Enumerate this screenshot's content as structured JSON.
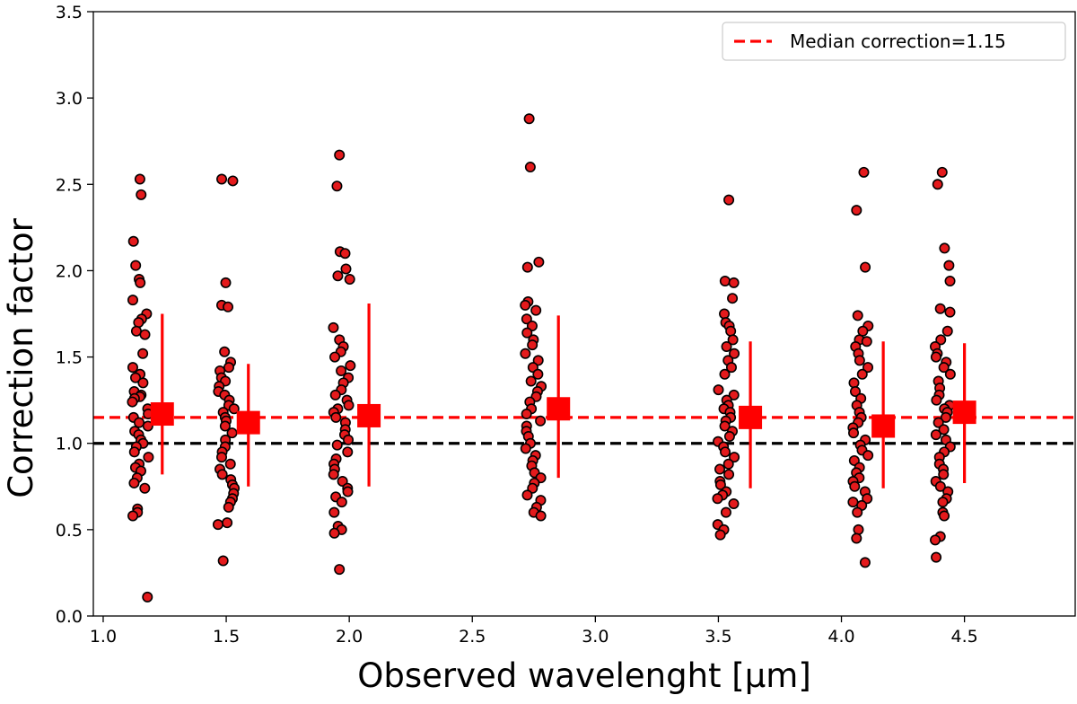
{
  "chart_data": {
    "type": "scatter",
    "xlabel": "Observed wavelenght [μm]",
    "ylabel": "Correction factor",
    "xlim": [
      0.96,
      4.95
    ],
    "ylim": [
      0.0,
      3.5
    ],
    "xticks": [
      "1.0",
      "1.5",
      "2.0",
      "2.5",
      "3.0",
      "3.5",
      "4.0",
      "4.5"
    ],
    "yticks": [
      "0.0",
      "0.5",
      "1.0",
      "1.5",
      "2.0",
      "2.5",
      "3.0",
      "3.5"
    ],
    "grid": false,
    "legend": {
      "placement": "top-right",
      "entries": [
        "Median correction=1.15"
      ]
    },
    "reference_lines": [
      {
        "y": 1.15,
        "style": "dashed",
        "color": "#ff0000",
        "label": "Median correction=1.15"
      },
      {
        "y": 1.0,
        "style": "dashed",
        "color": "#000000"
      }
    ],
    "series": [
      {
        "kind": "points",
        "color": "#e41a1c",
        "edge_color": "#000000",
        "groups": [
          {
            "x_center": 1.15,
            "y": [
              2.53,
              2.44,
              2.17,
              2.03,
              1.95,
              1.93,
              1.83,
              1.75,
              1.72,
              1.7,
              1.65,
              1.63,
              1.52,
              1.44,
              1.4,
              1.38,
              1.35,
              1.3,
              1.28,
              1.27,
              1.26,
              1.24,
              1.2,
              1.17,
              1.15,
              1.12,
              1.1,
              1.07,
              1.05,
              1.02,
              1.0,
              0.98,
              0.95,
              0.92,
              0.88,
              0.86,
              0.84,
              0.8,
              0.77,
              0.74,
              0.62,
              0.6,
              0.58,
              0.11
            ]
          },
          {
            "x_center": 1.5,
            "y": [
              2.53,
              2.52,
              1.93,
              1.8,
              1.79,
              1.53,
              1.47,
              1.44,
              1.42,
              1.38,
              1.36,
              1.33,
              1.3,
              1.28,
              1.25,
              1.22,
              1.2,
              1.18,
              1.15,
              1.13,
              1.1,
              1.06,
              1.02,
              0.98,
              0.95,
              0.92,
              0.88,
              0.85,
              0.82,
              0.79,
              0.76,
              0.74,
              0.71,
              0.68,
              0.66,
              0.63,
              0.54,
              0.53,
              0.32
            ]
          },
          {
            "x_center": 1.97,
            "y": [
              2.67,
              2.49,
              2.11,
              2.1,
              2.01,
              1.97,
              1.95,
              1.67,
              1.6,
              1.56,
              1.53,
              1.5,
              1.45,
              1.42,
              1.38,
              1.35,
              1.31,
              1.28,
              1.25,
              1.22,
              1.2,
              1.18,
              1.15,
              1.12,
              1.08,
              1.05,
              1.02,
              0.99,
              0.95,
              0.91,
              0.88,
              0.85,
              0.82,
              0.78,
              0.74,
              0.72,
              0.69,
              0.66,
              0.6,
              0.52,
              0.5,
              0.48,
              0.27
            ]
          },
          {
            "x_center": 2.75,
            "y": [
              2.88,
              2.6,
              2.05,
              2.02,
              1.82,
              1.8,
              1.77,
              1.72,
              1.68,
              1.64,
              1.6,
              1.57,
              1.52,
              1.48,
              1.44,
              1.4,
              1.36,
              1.33,
              1.3,
              1.27,
              1.24,
              1.2,
              1.17,
              1.13,
              1.1,
              1.07,
              1.04,
              1.0,
              0.97,
              0.93,
              0.9,
              0.87,
              0.83,
              0.8,
              0.77,
              0.74,
              0.7,
              0.67,
              0.63,
              0.6,
              0.58
            ]
          },
          {
            "x_center": 3.53,
            "y": [
              2.41,
              1.94,
              1.93,
              1.84,
              1.75,
              1.7,
              1.68,
              1.65,
              1.6,
              1.56,
              1.52,
              1.48,
              1.44,
              1.4,
              1.31,
              1.28,
              1.25,
              1.22,
              1.2,
              1.18,
              1.15,
              1.13,
              1.1,
              1.07,
              1.04,
              1.01,
              0.98,
              0.95,
              0.92,
              0.88,
              0.85,
              0.82,
              0.78,
              0.76,
              0.72,
              0.7,
              0.68,
              0.65,
              0.6,
              0.53,
              0.5,
              0.47
            ]
          },
          {
            "x_center": 4.08,
            "y": [
              2.57,
              2.35,
              2.02,
              1.74,
              1.68,
              1.65,
              1.6,
              1.59,
              1.56,
              1.52,
              1.48,
              1.44,
              1.4,
              1.35,
              1.3,
              1.26,
              1.22,
              1.18,
              1.15,
              1.12,
              1.09,
              1.06,
              1.02,
              0.99,
              0.96,
              0.93,
              0.9,
              0.86,
              0.83,
              0.8,
              0.78,
              0.75,
              0.72,
              0.68,
              0.66,
              0.64,
              0.6,
              0.5,
              0.45,
              0.31
            ]
          },
          {
            "x_center": 4.41,
            "y": [
              2.57,
              2.5,
              2.13,
              2.03,
              1.94,
              1.78,
              1.76,
              1.65,
              1.6,
              1.56,
              1.52,
              1.5,
              1.47,
              1.44,
              1.4,
              1.36,
              1.32,
              1.28,
              1.25,
              1.22,
              1.2,
              1.18,
              1.15,
              1.12,
              1.08,
              1.05,
              1.02,
              0.98,
              0.95,
              0.92,
              0.88,
              0.85,
              0.82,
              0.78,
              0.75,
              0.72,
              0.68,
              0.66,
              0.6,
              0.58,
              0.46,
              0.44,
              0.34
            ]
          }
        ]
      },
      {
        "kind": "medians",
        "color": "#ff0000",
        "points": [
          {
            "x": 1.24,
            "y": 1.17,
            "low": 0.82,
            "high": 1.75
          },
          {
            "x": 1.59,
            "y": 1.12,
            "low": 0.75,
            "high": 1.46
          },
          {
            "x": 2.08,
            "y": 1.16,
            "low": 0.75,
            "high": 1.81
          },
          {
            "x": 2.85,
            "y": 1.2,
            "low": 0.8,
            "high": 1.74
          },
          {
            "x": 3.63,
            "y": 1.15,
            "low": 0.74,
            "high": 1.59
          },
          {
            "x": 4.17,
            "y": 1.1,
            "low": 0.74,
            "high": 1.59
          },
          {
            "x": 4.5,
            "y": 1.18,
            "low": 0.77,
            "high": 1.58
          }
        ]
      }
    ]
  }
}
